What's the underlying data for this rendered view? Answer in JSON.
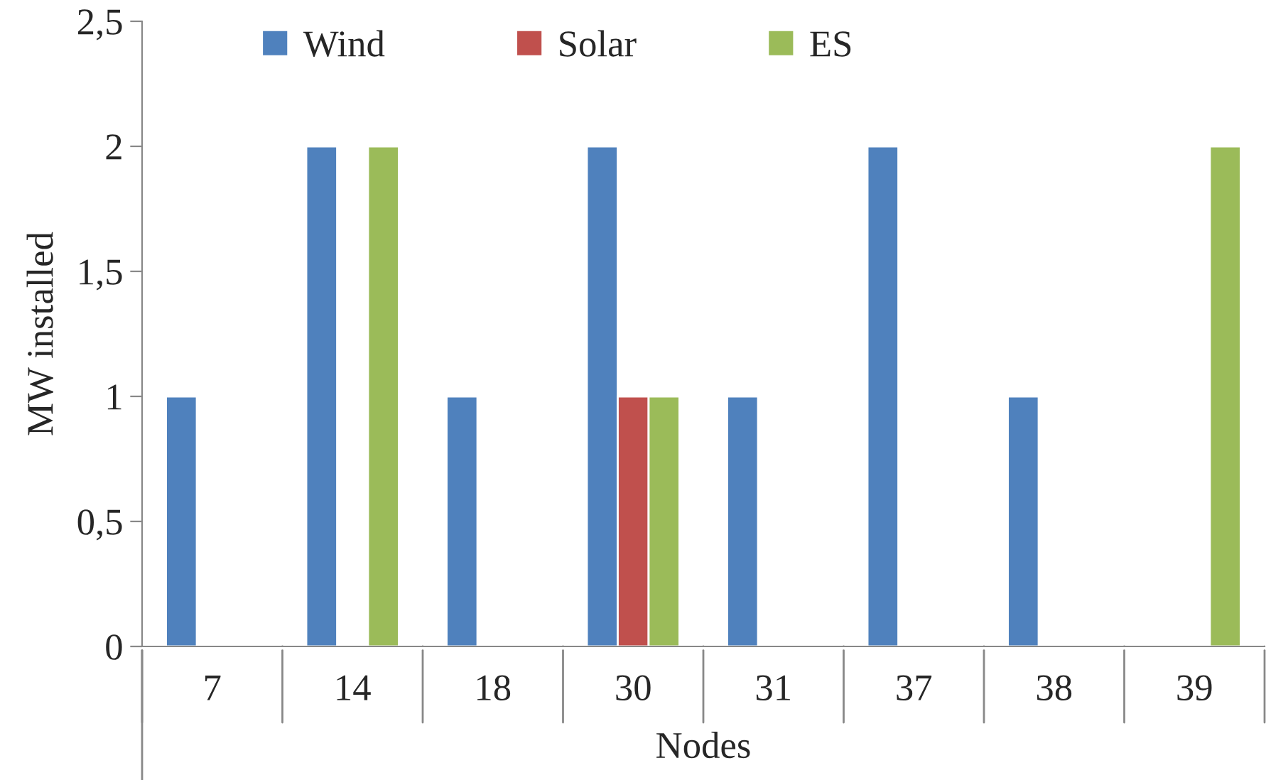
{
  "chart_data": {
    "type": "bar",
    "xlabel": "Nodes",
    "ylabel": "MW installed",
    "categories": [
      "7",
      "14",
      "18",
      "30",
      "31",
      "37",
      "38",
      "39"
    ],
    "series": [
      {
        "name": "Wind",
        "color": "#4f81bd",
        "values": [
          1,
          2,
          1,
          2,
          1,
          2,
          1,
          null
        ]
      },
      {
        "name": "Solar",
        "color": "#c0504d",
        "values": [
          null,
          null,
          null,
          1,
          null,
          null,
          null,
          null
        ]
      },
      {
        "name": "ES",
        "color": "#9bbb59",
        "values": [
          null,
          2,
          null,
          1,
          null,
          null,
          null,
          2
        ]
      }
    ],
    "ylim": [
      0,
      2.5
    ],
    "yticks": [
      {
        "value": 0,
        "label": "0"
      },
      {
        "value": 0.5,
        "label": "0,5"
      },
      {
        "value": 1,
        "label": "1"
      },
      {
        "value": 1.5,
        "label": "1,5"
      },
      {
        "value": 2,
        "label": "2"
      },
      {
        "value": 2.5,
        "label": "2,5"
      }
    ],
    "grid": false,
    "legend": "top"
  }
}
